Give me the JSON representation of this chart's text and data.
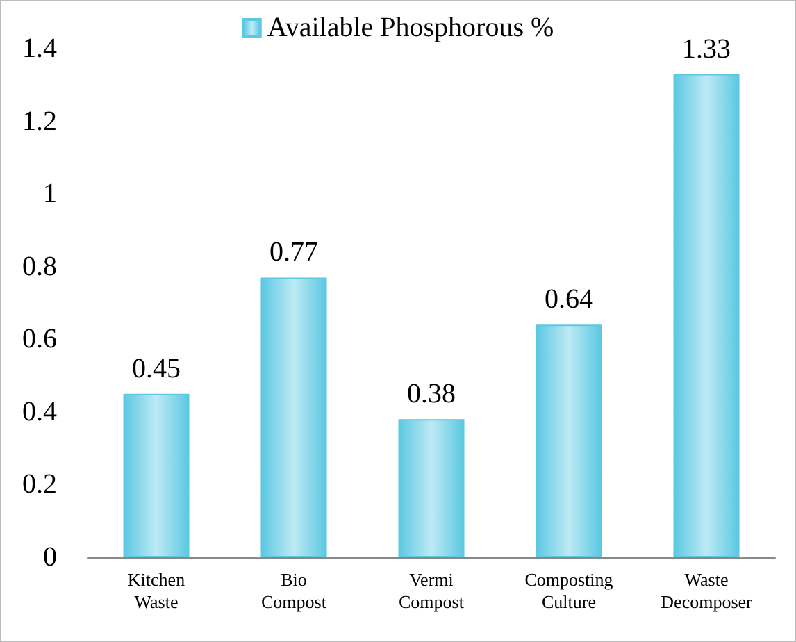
{
  "chart_data": {
    "type": "bar",
    "categories": [
      "Kitchen Waste",
      "Bio Compost",
      "Vermi Compost",
      "Composting Culture",
      "Waste Decomposer"
    ],
    "series": [
      {
        "name": "Available Phosphorous %",
        "color": "#5cc8e2",
        "values": [
          0.45,
          0.77,
          0.38,
          0.64,
          1.33
        ]
      }
    ],
    "ylim": [
      0,
      1.4
    ],
    "yticks": [
      0,
      0.2,
      0.4,
      0.6,
      0.8,
      1,
      1.2,
      1.4
    ],
    "grid": false,
    "legend": "top",
    "data_labels": true
  }
}
